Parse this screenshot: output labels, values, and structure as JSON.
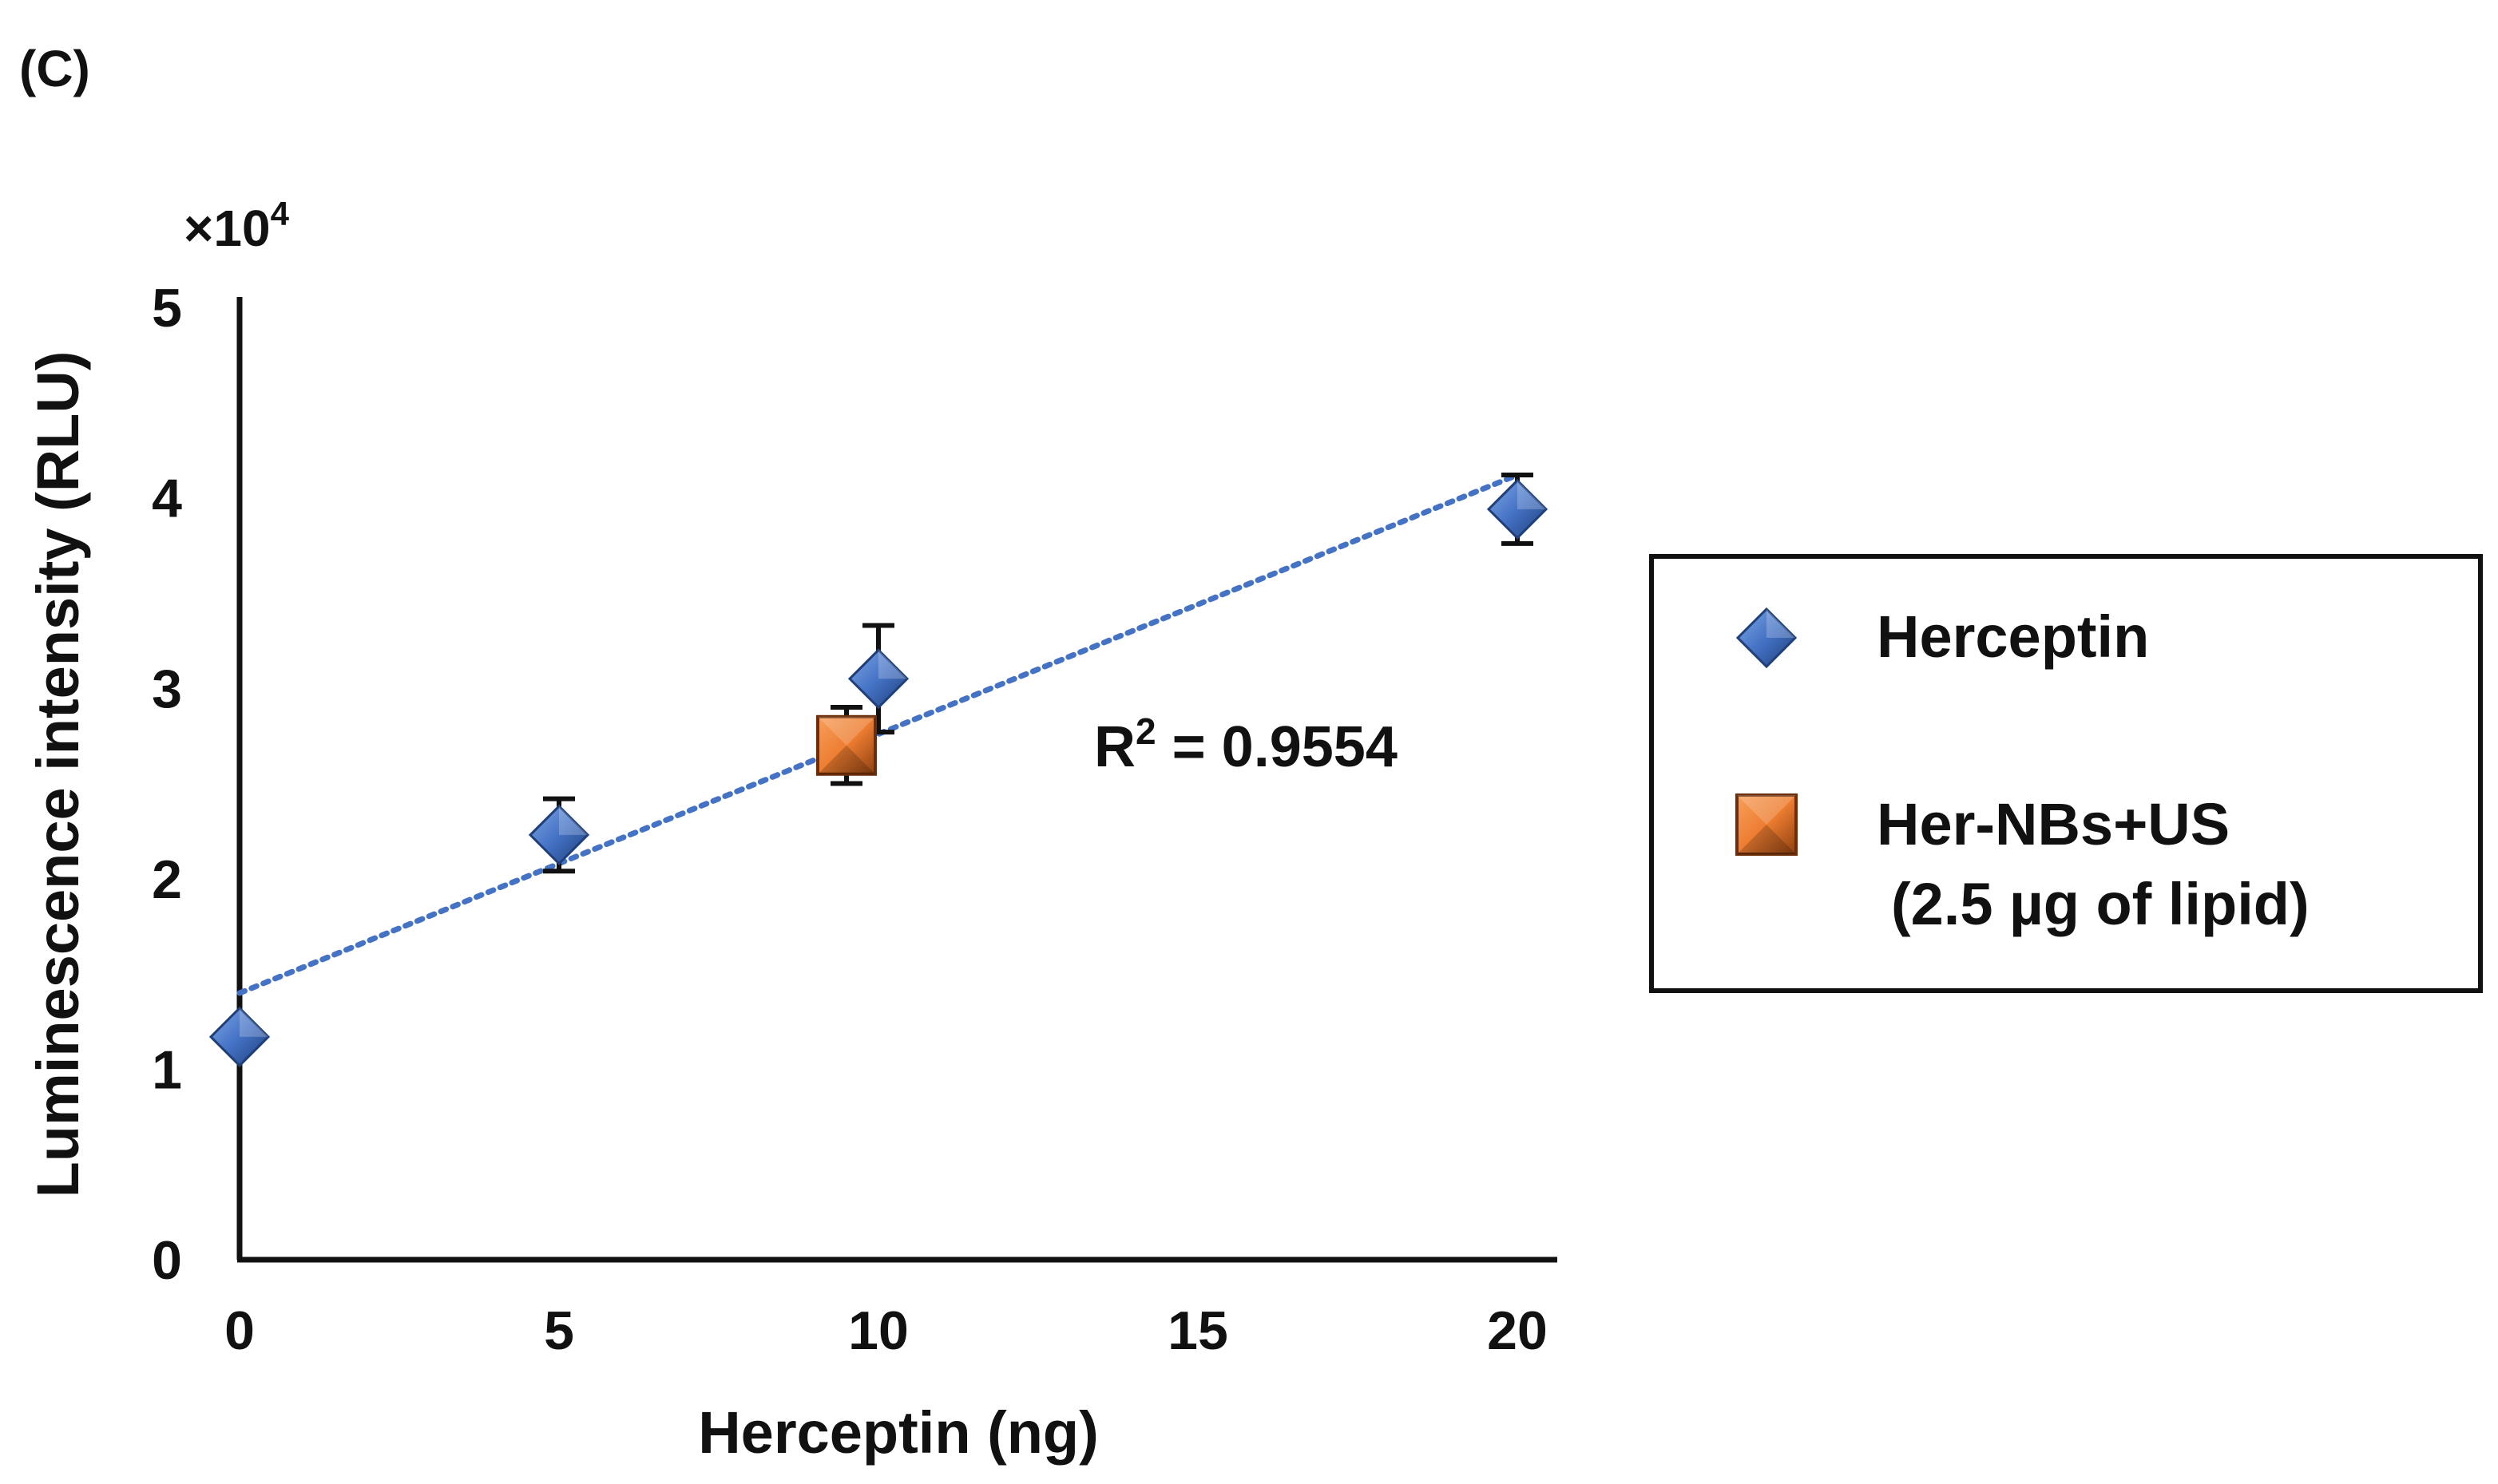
{
  "panel_label": "(C)",
  "chart_data": {
    "type": "scatter",
    "title": "",
    "xlabel": "Herceptin (ng)",
    "ylabel": "Luminescence intensity (RLU)",
    "y_multiplier": "×10",
    "y_multiplier_exp": "4",
    "x_ticks": [
      0,
      5,
      10,
      15,
      20
    ],
    "y_ticks": [
      0,
      1,
      2,
      3,
      4,
      5
    ],
    "xlim": [
      0,
      20.7
    ],
    "ylim": [
      0,
      5
    ],
    "grid": false,
    "legend_position": "right",
    "series": [
      {
        "name": "Herceptin",
        "marker": "diamond",
        "color": "#4472c4",
        "x": [
          0,
          5,
          10,
          20
        ],
        "y": [
          1.17,
          2.23,
          3.05,
          3.94
        ],
        "err": [
          0,
          0.19,
          0.28,
          0.18
        ]
      },
      {
        "name": "Her-NBs+US",
        "name_line2": "(2.5 µg of lipid)",
        "marker": "square",
        "color": "#ed7d31",
        "x": [
          9.5
        ],
        "y": [
          2.7
        ],
        "err": [
          0.2
        ]
      }
    ],
    "trendline": {
      "style": "dotted",
      "color": "#4472c4",
      "x": [
        0,
        20
      ],
      "y": [
        1.4,
        4.12
      ],
      "label_prefix": "R",
      "label_sup": "2",
      "label_value": " = 0.9554"
    }
  }
}
